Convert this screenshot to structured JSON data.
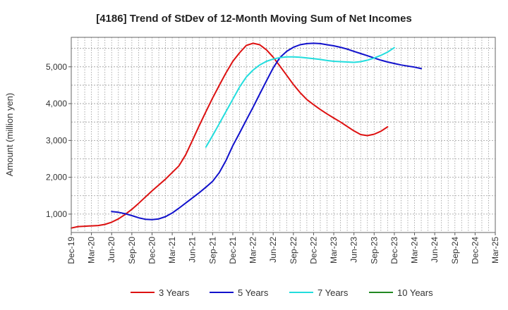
{
  "chart_data": {
    "type": "line",
    "title": "[4186]  Trend of StDev of 12-Month Moving Sum of Net Incomes",
    "ylabel": "Amount (million yen)",
    "xlabel": "",
    "ylim": [
      500,
      5800
    ],
    "yticks": [
      1000,
      2000,
      3000,
      4000,
      5000
    ],
    "ytick_labels": [
      "1,000",
      "2,000",
      "3,000",
      "4,000",
      "5,000"
    ],
    "x_ticks": [
      "Dec-19",
      "Mar-20",
      "Jun-20",
      "Sep-20",
      "Dec-20",
      "Mar-21",
      "Jun-21",
      "Sep-21",
      "Dec-21",
      "Mar-22",
      "Jun-22",
      "Sep-22",
      "Dec-22",
      "Mar-23",
      "Jun-23",
      "Sep-23",
      "Dec-23",
      "Mar-24",
      "Jun-24",
      "Sep-24",
      "Dec-24",
      "Mar-25"
    ],
    "grid": true,
    "legend_position": "bottom",
    "series": [
      {
        "name": "3 Years",
        "color": "#dd1111",
        "points": [
          [
            0,
            620
          ],
          [
            1,
            660
          ],
          [
            2,
            670
          ],
          [
            3,
            680
          ],
          [
            4,
            690
          ],
          [
            5,
            720
          ],
          [
            6,
            780
          ],
          [
            7,
            870
          ],
          [
            8,
            990
          ],
          [
            9,
            1130
          ],
          [
            10,
            1290
          ],
          [
            11,
            1460
          ],
          [
            12,
            1630
          ],
          [
            13,
            1790
          ],
          [
            14,
            1950
          ],
          [
            15,
            2130
          ],
          [
            16,
            2310
          ],
          [
            17,
            2610
          ],
          [
            18,
            3000
          ],
          [
            19,
            3400
          ],
          [
            20,
            3780
          ],
          [
            21,
            4150
          ],
          [
            22,
            4500
          ],
          [
            23,
            4840
          ],
          [
            24,
            5150
          ],
          [
            25,
            5380
          ],
          [
            26,
            5580
          ],
          [
            27,
            5640
          ],
          [
            28,
            5600
          ],
          [
            29,
            5460
          ],
          [
            30,
            5260
          ],
          [
            31,
            5020
          ],
          [
            32,
            4770
          ],
          [
            33,
            4520
          ],
          [
            34,
            4300
          ],
          [
            35,
            4110
          ],
          [
            36,
            3970
          ],
          [
            37,
            3840
          ],
          [
            38,
            3720
          ],
          [
            39,
            3610
          ],
          [
            40,
            3500
          ],
          [
            41,
            3380
          ],
          [
            42,
            3260
          ],
          [
            43,
            3160
          ],
          [
            44,
            3130
          ],
          [
            45,
            3170
          ],
          [
            46,
            3250
          ],
          [
            47,
            3370
          ]
        ]
      },
      {
        "name": "5 Years",
        "color": "#1111cc",
        "points": [
          [
            6,
            1070
          ],
          [
            7,
            1050
          ],
          [
            8,
            1010
          ],
          [
            9,
            960
          ],
          [
            10,
            900
          ],
          [
            11,
            860
          ],
          [
            12,
            850
          ],
          [
            13,
            870
          ],
          [
            14,
            930
          ],
          [
            15,
            1030
          ],
          [
            16,
            1160
          ],
          [
            17,
            1300
          ],
          [
            18,
            1440
          ],
          [
            19,
            1580
          ],
          [
            20,
            1730
          ],
          [
            21,
            1890
          ],
          [
            22,
            2130
          ],
          [
            23,
            2460
          ],
          [
            24,
            2860
          ],
          [
            25,
            3200
          ],
          [
            26,
            3550
          ],
          [
            27,
            3900
          ],
          [
            28,
            4260
          ],
          [
            29,
            4620
          ],
          [
            30,
            4970
          ],
          [
            31,
            5250
          ],
          [
            32,
            5420
          ],
          [
            33,
            5530
          ],
          [
            34,
            5600
          ],
          [
            35,
            5630
          ],
          [
            36,
            5640
          ],
          [
            37,
            5630
          ],
          [
            38,
            5600
          ],
          [
            39,
            5570
          ],
          [
            40,
            5530
          ],
          [
            41,
            5480
          ],
          [
            42,
            5420
          ],
          [
            43,
            5360
          ],
          [
            44,
            5300
          ],
          [
            45,
            5240
          ],
          [
            46,
            5180
          ],
          [
            47,
            5130
          ],
          [
            48,
            5090
          ],
          [
            49,
            5050
          ],
          [
            50,
            5020
          ],
          [
            51,
            4990
          ],
          [
            52,
            4950
          ]
        ]
      },
      {
        "name": "7 Years",
        "color": "#22dddd",
        "points": [
          [
            20,
            2820
          ],
          [
            21,
            3130
          ],
          [
            22,
            3460
          ],
          [
            23,
            3790
          ],
          [
            24,
            4120
          ],
          [
            25,
            4450
          ],
          [
            26,
            4720
          ],
          [
            27,
            4910
          ],
          [
            28,
            5050
          ],
          [
            29,
            5150
          ],
          [
            30,
            5210
          ],
          [
            31,
            5250
          ],
          [
            32,
            5270
          ],
          [
            33,
            5270
          ],
          [
            34,
            5260
          ],
          [
            35,
            5240
          ],
          [
            36,
            5220
          ],
          [
            37,
            5200
          ],
          [
            38,
            5170
          ],
          [
            39,
            5150
          ],
          [
            40,
            5140
          ],
          [
            41,
            5130
          ],
          [
            42,
            5120
          ],
          [
            43,
            5140
          ],
          [
            44,
            5180
          ],
          [
            45,
            5240
          ],
          [
            46,
            5310
          ],
          [
            47,
            5400
          ],
          [
            48,
            5520
          ]
        ]
      },
      {
        "name": "10 Years",
        "color": "#228822",
        "points": []
      }
    ]
  }
}
